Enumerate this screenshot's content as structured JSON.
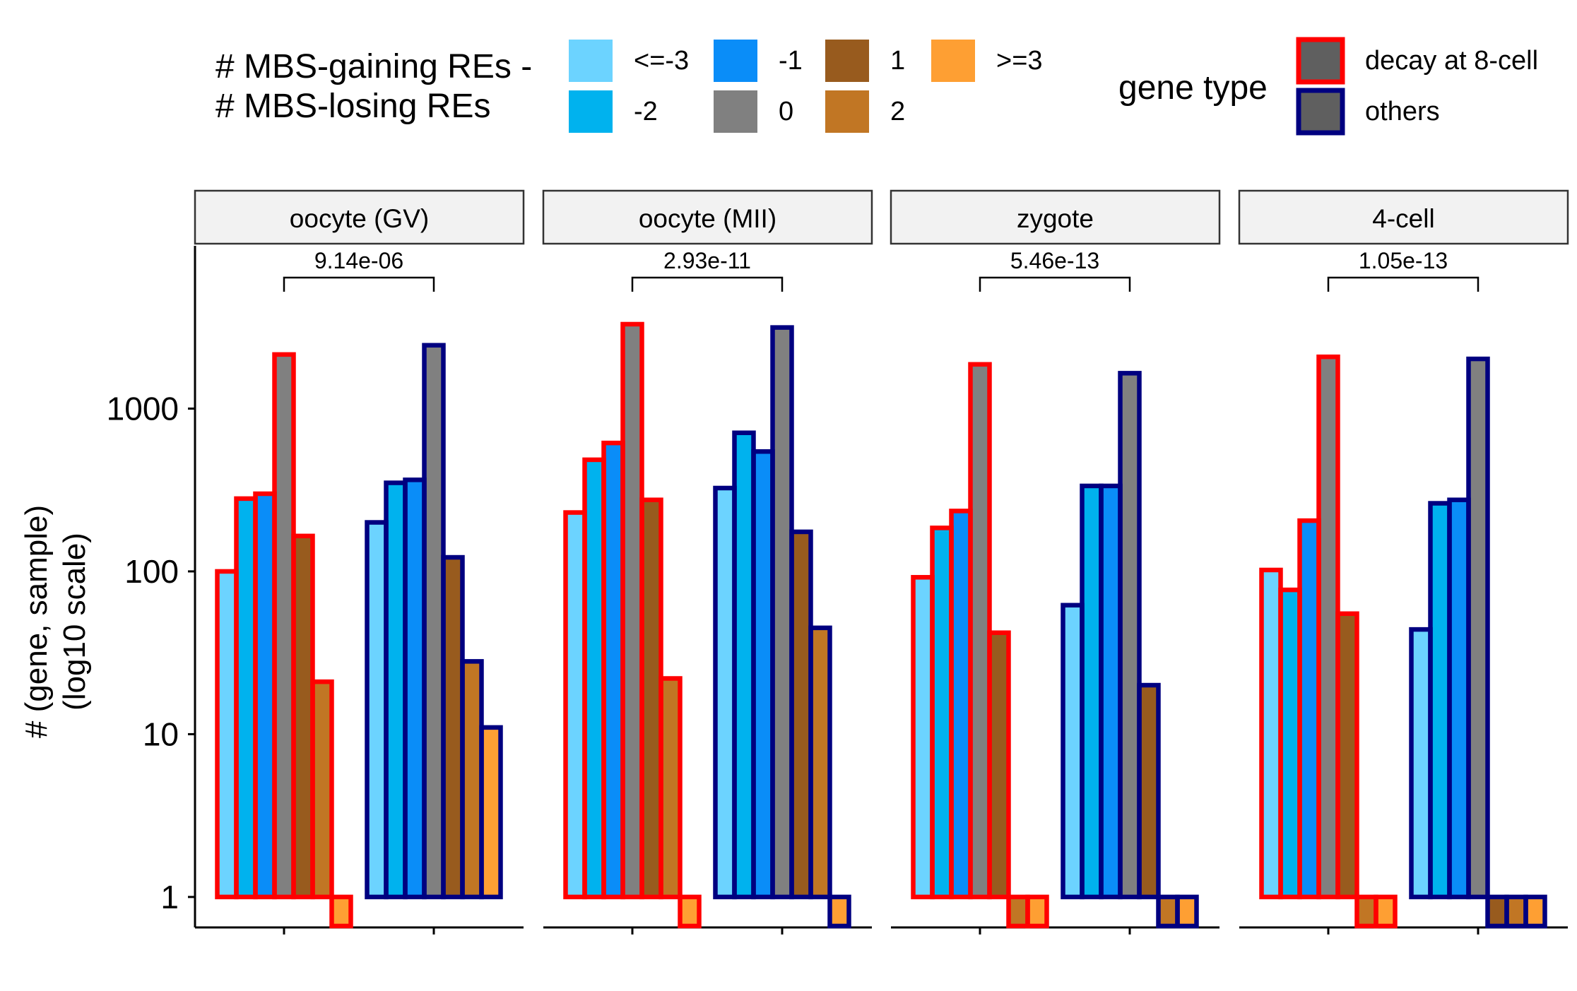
{
  "chart_data": {
    "type": "bar",
    "y_scale": "log10",
    "ylabel_lines": [
      "# (gene, sample)",
      "(log10 scale)"
    ],
    "y_ticks": [
      1,
      10,
      100,
      1000
    ],
    "y_tick_labels": [
      "1",
      "10",
      "100",
      "1000"
    ],
    "ylim": [
      0.65,
      10000
    ],
    "grid": false,
    "legend_position": "top",
    "fill_legend": {
      "title_lines": [
        "# MBS-gaining REs -",
        "# MBS-losing REs"
      ],
      "categories": [
        "<=-3",
        "-2",
        "-1",
        "0",
        "1",
        "2",
        ">=3"
      ],
      "colors": [
        "#6CD3FF",
        "#00B2EE",
        "#0A8DF8",
        "#808080",
        "#985B1E",
        "#C17624",
        "#FE9F33"
      ]
    },
    "outline_legend": {
      "title": "gene type",
      "entries": [
        "decay at 8-cell",
        "others"
      ],
      "colors": [
        "#FF0000",
        "#000080"
      ],
      "key_fill": "#5f5f5f"
    },
    "facets": [
      {
        "label": "oocyte (GV)",
        "p_value": "9.14e-06",
        "series": [
          {
            "name": "decay at 8-cell",
            "values": [
              100,
              280,
              300,
              2150,
              165,
              21,
              1
            ]
          },
          {
            "name": "others",
            "values": [
              200,
              350,
              365,
              2450,
              122,
              28,
              11
            ]
          }
        ]
      },
      {
        "label": "oocyte (MII)",
        "p_value": "2.93e-11",
        "series": [
          {
            "name": "decay at 8-cell",
            "values": [
              230,
              485,
              615,
              3300,
              275,
              22,
              1
            ]
          },
          {
            "name": "others",
            "values": [
              325,
              710,
              545,
              3150,
              175,
              45,
              1
            ]
          }
        ]
      },
      {
        "label": "zygote",
        "p_value": "5.46e-13",
        "series": [
          {
            "name": "decay at 8-cell",
            "values": [
              92,
              185,
              235,
              1870,
              42,
              1,
              1
            ]
          },
          {
            "name": "others",
            "values": [
              62,
              335,
              335,
              1650,
              20,
              1,
              1
            ]
          }
        ]
      },
      {
        "label": "4-cell",
        "p_value": "1.05e-13",
        "series": [
          {
            "name": "decay at 8-cell",
            "values": [
              102,
              77,
              205,
              2080,
              55,
              1,
              1
            ]
          },
          {
            "name": "others",
            "values": [
              44,
              262,
              275,
              2020,
              1,
              1,
              1
            ]
          }
        ]
      }
    ]
  }
}
